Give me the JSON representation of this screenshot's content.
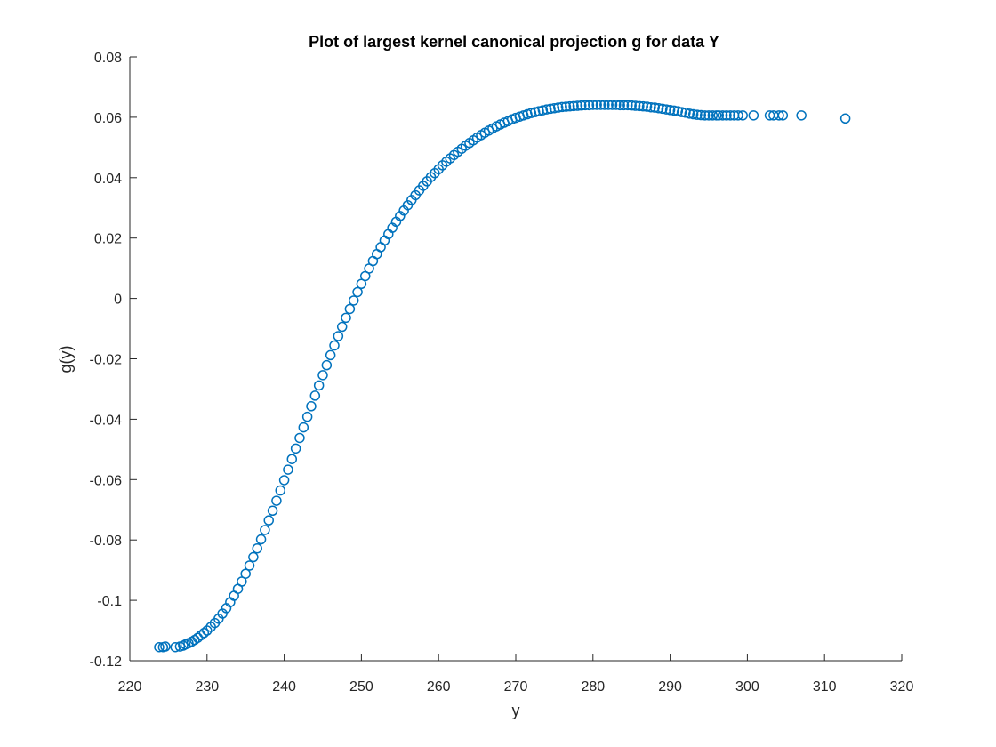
{
  "chart_data": {
    "type": "scatter",
    "title": "Plot of largest kernel canonical projection g for data Y",
    "xlabel": "y",
    "ylabel": "g(y)",
    "xlim": [
      220,
      320
    ],
    "ylim": [
      -0.12,
      0.08
    ],
    "x_ticks": [
      "220",
      "230",
      "240",
      "250",
      "260",
      "270",
      "280",
      "290",
      "300",
      "310",
      "320"
    ],
    "y_ticks": [
      "-0.12",
      "-0.1",
      "-0.08",
      "-0.06",
      "-0.04",
      "-0.02",
      "0",
      "0.02",
      "0.04",
      "0.06",
      "0.08"
    ],
    "grid": false,
    "marker": "circle-open",
    "marker_color": "#0072BD",
    "series": [
      {
        "points": [
          [
            223.8,
            -0.1155
          ],
          [
            224.3,
            -0.1155
          ],
          [
            224.6,
            -0.1153
          ],
          [
            225.9,
            -0.1155
          ],
          [
            226.5,
            -0.1153
          ],
          [
            226.9,
            -0.115
          ],
          [
            227.2,
            -0.1146
          ],
          [
            227.6,
            -0.1142
          ],
          [
            228.0,
            -0.1137
          ],
          [
            228.4,
            -0.1131
          ],
          [
            228.8,
            -0.1124
          ],
          [
            229.2,
            -0.1116
          ],
          [
            229.6,
            -0.1108
          ],
          [
            230.0,
            -0.11
          ],
          [
            230.5,
            -0.1088
          ],
          [
            231.0,
            -0.1075
          ],
          [
            231.5,
            -0.1061
          ],
          [
            232.0,
            -0.1044
          ],
          [
            232.5,
            -0.1026
          ],
          [
            233.0,
            -0.1006
          ],
          [
            233.5,
            -0.0985
          ],
          [
            234.0,
            -0.0962
          ],
          [
            234.5,
            -0.0938
          ],
          [
            235.0,
            -0.0912
          ],
          [
            235.5,
            -0.0885
          ],
          [
            236.0,
            -0.0857
          ],
          [
            236.5,
            -0.0828
          ],
          [
            237.0,
            -0.0798
          ],
          [
            237.5,
            -0.0767
          ],
          [
            238.0,
            -0.0735
          ],
          [
            238.5,
            -0.0703
          ],
          [
            239.0,
            -0.067
          ],
          [
            239.5,
            -0.0636
          ],
          [
            240.0,
            -0.0602
          ],
          [
            240.5,
            -0.0567
          ],
          [
            241.0,
            -0.0532
          ],
          [
            241.5,
            -0.0497
          ],
          [
            242.0,
            -0.0462
          ],
          [
            242.5,
            -0.0427
          ],
          [
            243.0,
            -0.0392
          ],
          [
            243.5,
            -0.0357
          ],
          [
            244.0,
            -0.0322
          ],
          [
            244.5,
            -0.0288
          ],
          [
            245.0,
            -0.0254
          ],
          [
            245.5,
            -0.0221
          ],
          [
            246.0,
            -0.0188
          ],
          [
            246.5,
            -0.0156
          ],
          [
            247.0,
            -0.0125
          ],
          [
            247.5,
            -0.0094
          ],
          [
            248.0,
            -0.0064
          ],
          [
            248.5,
            -0.0035
          ],
          [
            249.0,
            -0.0007
          ],
          [
            249.5,
            0.0021
          ],
          [
            250.0,
            0.0048
          ],
          [
            250.5,
            0.0074
          ],
          [
            251.0,
            0.0099
          ],
          [
            251.5,
            0.0124
          ],
          [
            252.0,
            0.0147
          ],
          [
            252.5,
            0.017
          ],
          [
            253.0,
            0.0192
          ],
          [
            253.5,
            0.0213
          ],
          [
            254.0,
            0.0234
          ],
          [
            254.5,
            0.0254
          ],
          [
            255.0,
            0.0273
          ],
          [
            255.5,
            0.0291
          ],
          [
            256.0,
            0.0309
          ],
          [
            256.5,
            0.0326
          ],
          [
            257.0,
            0.0342
          ],
          [
            257.5,
            0.0358
          ],
          [
            258.0,
            0.0373
          ],
          [
            258.5,
            0.0388
          ],
          [
            259.0,
            0.0402
          ],
          [
            259.5,
            0.0415
          ],
          [
            260.0,
            0.0428
          ],
          [
            260.5,
            0.0441
          ],
          [
            261.0,
            0.0453
          ],
          [
            261.5,
            0.0464
          ],
          [
            262.0,
            0.0475
          ],
          [
            262.5,
            0.0486
          ],
          [
            263.0,
            0.0496
          ],
          [
            263.5,
            0.0506
          ],
          [
            264.0,
            0.0515
          ],
          [
            264.5,
            0.0524
          ],
          [
            265.0,
            0.0533
          ],
          [
            265.5,
            0.0541
          ],
          [
            266.0,
            0.0549
          ],
          [
            266.5,
            0.0556
          ],
          [
            267.0,
            0.0563
          ],
          [
            267.5,
            0.057
          ],
          [
            268.0,
            0.0576
          ],
          [
            268.5,
            0.0582
          ],
          [
            269.0,
            0.0587
          ],
          [
            269.5,
            0.0593
          ],
          [
            270.0,
            0.0598
          ],
          [
            270.5,
            0.0602
          ],
          [
            271.0,
            0.0606
          ],
          [
            271.5,
            0.061
          ],
          [
            272.0,
            0.0614
          ],
          [
            272.5,
            0.0617
          ],
          [
            273.0,
            0.062
          ],
          [
            273.5,
            0.0623
          ],
          [
            274.0,
            0.0626
          ],
          [
            274.5,
            0.0628
          ],
          [
            275.0,
            0.063
          ],
          [
            275.5,
            0.0632
          ],
          [
            276.0,
            0.0634
          ],
          [
            276.5,
            0.0635
          ],
          [
            277.0,
            0.0636
          ],
          [
            277.5,
            0.0637
          ],
          [
            278.0,
            0.0638
          ],
          [
            278.5,
            0.0639
          ],
          [
            279.0,
            0.064
          ],
          [
            279.5,
            0.064
          ],
          [
            280.0,
            0.0641
          ],
          [
            280.5,
            0.0641
          ],
          [
            281.0,
            0.0641
          ],
          [
            281.5,
            0.0641
          ],
          [
            282.0,
            0.0641
          ],
          [
            282.5,
            0.0641
          ],
          [
            283.0,
            0.0641
          ],
          [
            283.5,
            0.064
          ],
          [
            284.0,
            0.064
          ],
          [
            284.5,
            0.064
          ],
          [
            285.0,
            0.0639
          ],
          [
            285.5,
            0.0638
          ],
          [
            286.0,
            0.0637
          ],
          [
            286.5,
            0.0636
          ],
          [
            287.0,
            0.0635
          ],
          [
            287.5,
            0.0633
          ],
          [
            288.0,
            0.0632
          ],
          [
            288.5,
            0.063
          ],
          [
            289.0,
            0.0628
          ],
          [
            289.5,
            0.0626
          ],
          [
            290.0,
            0.0624
          ],
          [
            290.5,
            0.0622
          ],
          [
            291.0,
            0.062
          ],
          [
            291.5,
            0.0617
          ],
          [
            292.0,
            0.0615
          ],
          [
            292.5,
            0.0612
          ],
          [
            293.0,
            0.061
          ],
          [
            293.5,
            0.0608
          ],
          [
            294.0,
            0.0607
          ],
          [
            294.5,
            0.0606
          ],
          [
            295.0,
            0.0606
          ],
          [
            295.5,
            0.0606
          ],
          [
            296.0,
            0.0606
          ],
          [
            296.3,
            0.0606
          ],
          [
            296.8,
            0.0606
          ],
          [
            297.3,
            0.0606
          ],
          [
            297.8,
            0.0606
          ],
          [
            298.3,
            0.0606
          ],
          [
            298.8,
            0.0606
          ],
          [
            299.4,
            0.0606
          ],
          [
            300.8,
            0.0606
          ],
          [
            302.9,
            0.0606
          ],
          [
            303.4,
            0.0606
          ],
          [
            304.1,
            0.0606
          ],
          [
            304.6,
            0.0606
          ],
          [
            307.0,
            0.0606
          ],
          [
            312.7,
            0.0596
          ]
        ]
      }
    ]
  }
}
